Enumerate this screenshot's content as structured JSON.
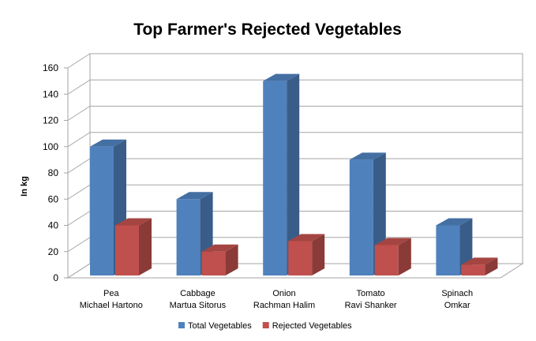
{
  "chart_data": {
    "type": "bar",
    "title": "Top Farmer's Rejected Vegetables",
    "xlabel": "",
    "ylabel": "In kg",
    "ylim": [
      0,
      160
    ],
    "yticks": [
      0,
      20,
      40,
      60,
      80,
      100,
      120,
      140,
      160
    ],
    "grid": true,
    "legend_position": "bottom",
    "categories": [
      [
        "Pea",
        "Michael Hartono"
      ],
      [
        "Cabbage",
        "Martua Sitorus"
      ],
      [
        "Onion",
        "Rachman Halim"
      ],
      [
        "Tomato",
        "Ravi Shanker"
      ],
      [
        "Spinach",
        "Omkar"
      ]
    ],
    "series": [
      {
        "name": "Total Vegetables",
        "color": "#4f81bd",
        "values": [
          100,
          60,
          150,
          90,
          40
        ]
      },
      {
        "name": "Rejected Vegetables",
        "color": "#c0504d",
        "values": [
          40,
          20,
          28,
          25,
          10
        ]
      }
    ]
  }
}
